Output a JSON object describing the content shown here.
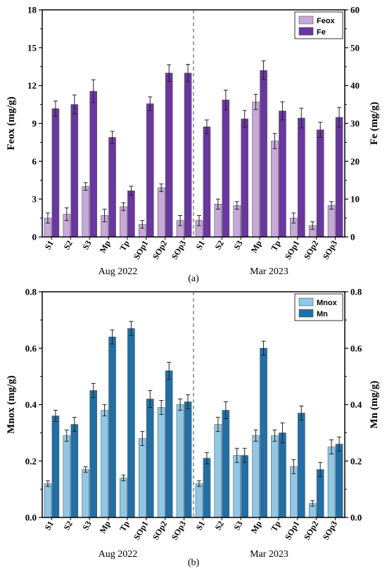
{
  "chart_data": [
    {
      "type": "bar",
      "panel_label": "(a)",
      "categories": [
        "S1",
        "S2",
        "S3",
        "Mp",
        "Tp",
        "SOp1",
        "SOp2",
        "SOp3",
        "S1",
        "S2",
        "S3",
        "Mp",
        "Tp",
        "SOp1",
        "SOp2",
        "SOp3"
      ],
      "groups": [
        {
          "label": "Aug 2022",
          "count": 8
        },
        {
          "label": "Mar 2023",
          "count": 8
        }
      ],
      "ylabel": "Feox (mg/g)",
      "y2label": "Fe (mg/g)",
      "ylim": [
        0,
        18
      ],
      "yticks": [
        0,
        3,
        6,
        9,
        12,
        15,
        18
      ],
      "y2lim": [
        0,
        60
      ],
      "y2ticks": [
        0,
        10,
        20,
        30,
        40,
        50,
        60
      ],
      "legend_position": "top-right",
      "series": [
        {
          "name": "Feox",
          "axis": "left",
          "color": "#c7a8d8",
          "values": [
            1.5,
            1.8,
            4.0,
            1.7,
            2.4,
            1.0,
            3.9,
            1.3,
            1.3,
            2.6,
            2.5,
            10.7,
            7.6,
            1.5,
            0.9,
            2.5
          ],
          "errors": [
            0.4,
            0.5,
            0.3,
            0.5,
            0.3,
            0.3,
            0.3,
            0.4,
            0.4,
            0.4,
            0.3,
            0.6,
            0.6,
            0.4,
            0.3,
            0.3
          ]
        },
        {
          "name": "Fe",
          "axis": "right",
          "color": "#6a36a3",
          "values": [
            33.9,
            35.0,
            38.5,
            26.3,
            12.2,
            35.2,
            43.3,
            43.3,
            29.1,
            36.2,
            31.2,
            44.0,
            33.3,
            31.4,
            28.3,
            31.6
          ],
          "errors": [
            2.0,
            2.5,
            3.0,
            1.6,
            1.2,
            1.8,
            2.2,
            2.3,
            1.8,
            2.6,
            2.2,
            2.5,
            2.4,
            2.6,
            2.0,
            2.6
          ]
        }
      ]
    },
    {
      "type": "bar",
      "panel_label": "(b)",
      "categories": [
        "S1",
        "S2",
        "S3",
        "Mp",
        "Tp",
        "SOp1",
        "SOp2",
        "SOp3",
        "S1",
        "S2",
        "S3",
        "Mp",
        "Tp",
        "SOp1",
        "SOp2",
        "SOp3"
      ],
      "groups": [
        {
          "label": "Aug 2022",
          "count": 8
        },
        {
          "label": "Mar 2023",
          "count": 8
        }
      ],
      "ylabel": "Mnox (mg/g)",
      "y2label": "Mn  (mg/g)",
      "ylim": [
        0,
        0.8
      ],
      "yticks": [
        0.0,
        0.2,
        0.4,
        0.6,
        0.8
      ],
      "y2lim": [
        0,
        0.8
      ],
      "y2ticks": [
        0.0,
        0.2,
        0.4,
        0.6,
        0.8
      ],
      "legend_position": "top-right",
      "series": [
        {
          "name": "Mnox",
          "axis": "left",
          "color": "#8ec8e6",
          "values": [
            0.12,
            0.29,
            0.17,
            0.38,
            0.14,
            0.28,
            0.39,
            0.4,
            0.12,
            0.33,
            0.22,
            0.29,
            0.29,
            0.18,
            0.05,
            0.25
          ],
          "errors": [
            0.01,
            0.02,
            0.01,
            0.02,
            0.01,
            0.025,
            0.025,
            0.02,
            0.01,
            0.025,
            0.025,
            0.02,
            0.02,
            0.025,
            0.01,
            0.025
          ]
        },
        {
          "name": "Mn",
          "axis": "right",
          "color": "#1f70a8",
          "values": [
            0.36,
            0.33,
            0.45,
            0.64,
            0.67,
            0.42,
            0.52,
            0.41,
            0.21,
            0.38,
            0.22,
            0.6,
            0.3,
            0.37,
            0.17,
            0.26
          ],
          "errors": [
            0.02,
            0.025,
            0.025,
            0.025,
            0.025,
            0.03,
            0.03,
            0.025,
            0.02,
            0.03,
            0.025,
            0.025,
            0.035,
            0.025,
            0.025,
            0.025
          ]
        }
      ]
    }
  ]
}
